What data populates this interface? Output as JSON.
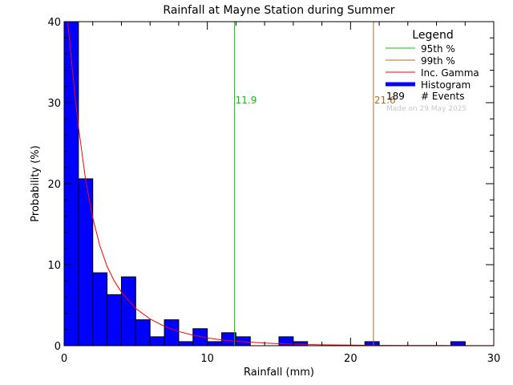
{
  "chart_data": {
    "type": "bar",
    "title": "Rainfall at Mayne Station during Summer",
    "xlabel": "Rainfall (mm)",
    "ylabel": "Probability (%)",
    "xlim": [
      0,
      30
    ],
    "ylim": [
      0,
      40
    ],
    "x_ticks": [
      0,
      10,
      20,
      30
    ],
    "y_ticks": [
      0,
      10,
      20,
      30,
      40
    ],
    "bin_width": 1,
    "bins": [
      {
        "x0": 0,
        "x1": 1,
        "value": 40.0
      },
      {
        "x0": 1,
        "x1": 2,
        "value": 20.6
      },
      {
        "x0": 2,
        "x1": 3,
        "value": 9.0
      },
      {
        "x0": 3,
        "x1": 4,
        "value": 6.3
      },
      {
        "x0": 4,
        "x1": 5,
        "value": 8.5
      },
      {
        "x0": 5,
        "x1": 6,
        "value": 3.2
      },
      {
        "x0": 6,
        "x1": 7,
        "value": 1.1
      },
      {
        "x0": 7,
        "x1": 8,
        "value": 3.2
      },
      {
        "x0": 8,
        "x1": 9,
        "value": 0.5
      },
      {
        "x0": 9,
        "x1": 10,
        "value": 2.1
      },
      {
        "x0": 10,
        "x1": 11,
        "value": 0.5
      },
      {
        "x0": 11,
        "x1": 12,
        "value": 1.6
      },
      {
        "x0": 12,
        "x1": 13,
        "value": 1.1
      },
      {
        "x0": 13,
        "x1": 14,
        "value": 0
      },
      {
        "x0": 14,
        "x1": 15,
        "value": 0
      },
      {
        "x0": 15,
        "x1": 16,
        "value": 1.1
      },
      {
        "x0": 16,
        "x1": 17,
        "value": 0.5
      },
      {
        "x0": 17,
        "x1": 18,
        "value": 0
      },
      {
        "x0": 18,
        "x1": 19,
        "value": 0
      },
      {
        "x0": 19,
        "x1": 20,
        "value": 0
      },
      {
        "x0": 20,
        "x1": 21,
        "value": 0
      },
      {
        "x0": 21,
        "x1": 22,
        "value": 0.5
      },
      {
        "x0": 22,
        "x1": 23,
        "value": 0
      },
      {
        "x0": 23,
        "x1": 24,
        "value": 0
      },
      {
        "x0": 24,
        "x1": 25,
        "value": 0
      },
      {
        "x0": 25,
        "x1": 26,
        "value": 0
      },
      {
        "x0": 26,
        "x1": 27,
        "value": 0
      },
      {
        "x0": 27,
        "x1": 28,
        "value": 0.5
      },
      {
        "x0": 28,
        "x1": 29,
        "value": 0
      },
      {
        "x0": 29,
        "x1": 30,
        "value": 0
      }
    ],
    "gamma_curve": {
      "name": "Inc. Gamma",
      "points": [
        [
          0.25,
          40.0
        ],
        [
          0.5,
          35.5
        ],
        [
          0.75,
          31.0
        ],
        [
          1.0,
          27.0
        ],
        [
          1.5,
          20.5
        ],
        [
          2.0,
          15.8
        ],
        [
          2.5,
          12.3
        ],
        [
          3.0,
          9.8
        ],
        [
          3.5,
          8.0
        ],
        [
          4.0,
          6.6
        ],
        [
          5.0,
          4.6
        ],
        [
          6.0,
          3.3
        ],
        [
          7.0,
          2.4
        ],
        [
          8.0,
          1.75
        ],
        [
          9.0,
          1.3
        ],
        [
          10.0,
          0.95
        ],
        [
          11.0,
          0.72
        ],
        [
          12.0,
          0.55
        ],
        [
          14.0,
          0.32
        ],
        [
          16.0,
          0.19
        ],
        [
          18.0,
          0.11
        ],
        [
          20.0,
          0.07
        ],
        [
          22.0,
          0.04
        ],
        [
          24.0,
          0.025
        ],
        [
          26.0,
          0.015
        ],
        [
          28.0,
          0.01
        ],
        [
          30.0,
          0.006
        ]
      ]
    },
    "percentiles": [
      {
        "name": "95th %",
        "value": 11.9,
        "label": "11.9",
        "color": "#00c800"
      },
      {
        "name": "99th %",
        "value": 21.6,
        "label": "21.6",
        "color": "#b46e1e"
      }
    ],
    "legend": {
      "title": "Legend",
      "placement": "top-right",
      "entries": [
        {
          "label": "95th %",
          "color": "#00c800",
          "kind": "line"
        },
        {
          "label": "99th %",
          "color": "#b46e1e",
          "kind": "line"
        },
        {
          "label": "Inc. Gamma",
          "color": "#ff0000",
          "kind": "line"
        },
        {
          "label": "Histogram",
          "color": "#0000ff",
          "kind": "bar"
        }
      ],
      "events_count": "189",
      "events_label": "# Events",
      "note": "Made on 29 May 2025"
    },
    "colors": {
      "bar_fill": "#0000ff",
      "bar_stroke": "#000000",
      "curve": "#ff0000",
      "note": "#c8c8c8"
    },
    "grid": false
  }
}
